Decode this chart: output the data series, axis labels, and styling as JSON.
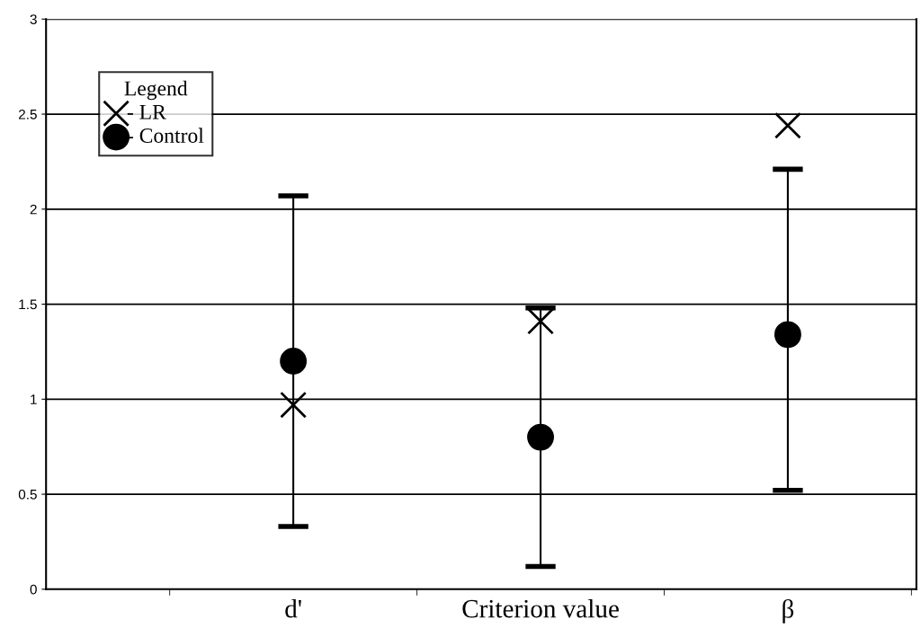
{
  "chart_data": {
    "type": "scatter",
    "categories": [
      "d'",
      "Criterion value",
      "β"
    ],
    "series": [
      {
        "name": "- LR",
        "color": "#000000",
        "marker": "cross",
        "values": [
          0.97,
          1.41,
          2.44
        ]
      },
      {
        "name": "- Control",
        "color": "#000000",
        "marker": "circle",
        "values": [
          1.2,
          0.8,
          1.34
        ],
        "errors": [
          [
            0.33,
            2.07
          ],
          [
            0.12,
            1.48
          ],
          [
            0.52,
            2.21
          ]
        ]
      }
    ],
    "legend_title": "Legend",
    "ylim": [
      0,
      3
    ],
    "yticks": [
      0,
      0.5,
      1,
      1.5,
      2,
      2.5,
      3
    ],
    "grid": "y",
    "legend": "top left"
  }
}
